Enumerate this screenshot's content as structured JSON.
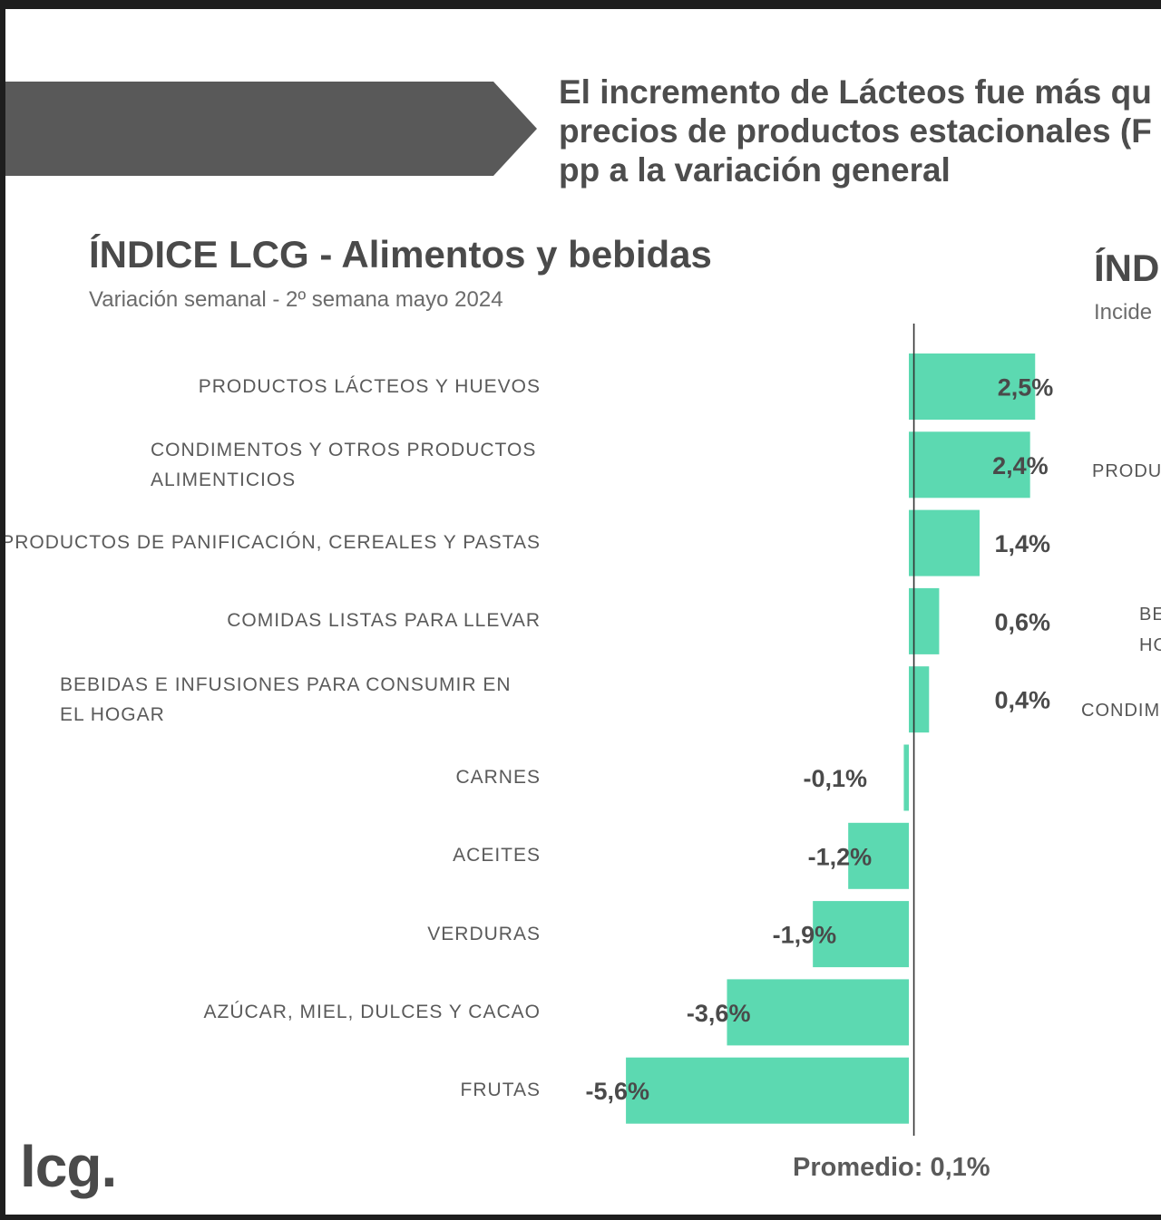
{
  "headline": {
    "lines": [
      "El incremento de Lácteos fue más qu",
      "precios de productos estacionales (F",
      "pp a la variación general"
    ]
  },
  "colors": {
    "bar": "#5cd9b1",
    "arrow": "#595959",
    "axis": "#333333",
    "text": "#4a4a4a"
  },
  "right_panel": {
    "title": "ÍND",
    "subtitle": "Incide",
    "labels": [
      "PRODU",
      "BE",
      "HO",
      "CONDIM"
    ]
  },
  "logo": "lcg.",
  "average_label": "Promedio: 0,1%",
  "chart_data": {
    "type": "bar",
    "orientation": "horizontal",
    "title": "ÍNDICE LCG - Alimentos y bebidas",
    "subtitle": "Variación semanal - 2º semana mayo 2024",
    "categories": [
      "PRODUCTOS LÁCTEOS Y HUEVOS",
      "CONDIMENTOS Y OTROS PRODUCTOS ALIMENTICIOS",
      "PRODUCTOS DE PANIFICACIÓN, CEREALES Y PASTAS",
      "COMIDAS LISTAS PARA LLEVAR",
      "BEBIDAS E INFUSIONES PARA CONSUMIR EN EL HOGAR",
      "CARNES",
      "ACEITES",
      "VERDURAS",
      "AZÚCAR, MIEL, DULCES Y CACAO",
      "FRUTAS"
    ],
    "values": [
      2.5,
      2.4,
      1.4,
      0.6,
      0.4,
      -0.1,
      -1.2,
      -1.9,
      -3.6,
      -5.6
    ],
    "data_labels": [
      "2,5%",
      "2,4%",
      "1,4%",
      "0,6%",
      "0,4%",
      "-0,1%",
      "-1,2%",
      "-1,9%",
      "-3,6%",
      "-5,6%"
    ],
    "reference_line": {
      "value": 0.1,
      "label": "Promedio: 0,1%"
    },
    "xlabel": "",
    "ylabel": "",
    "grid": false,
    "legend": "none"
  }
}
